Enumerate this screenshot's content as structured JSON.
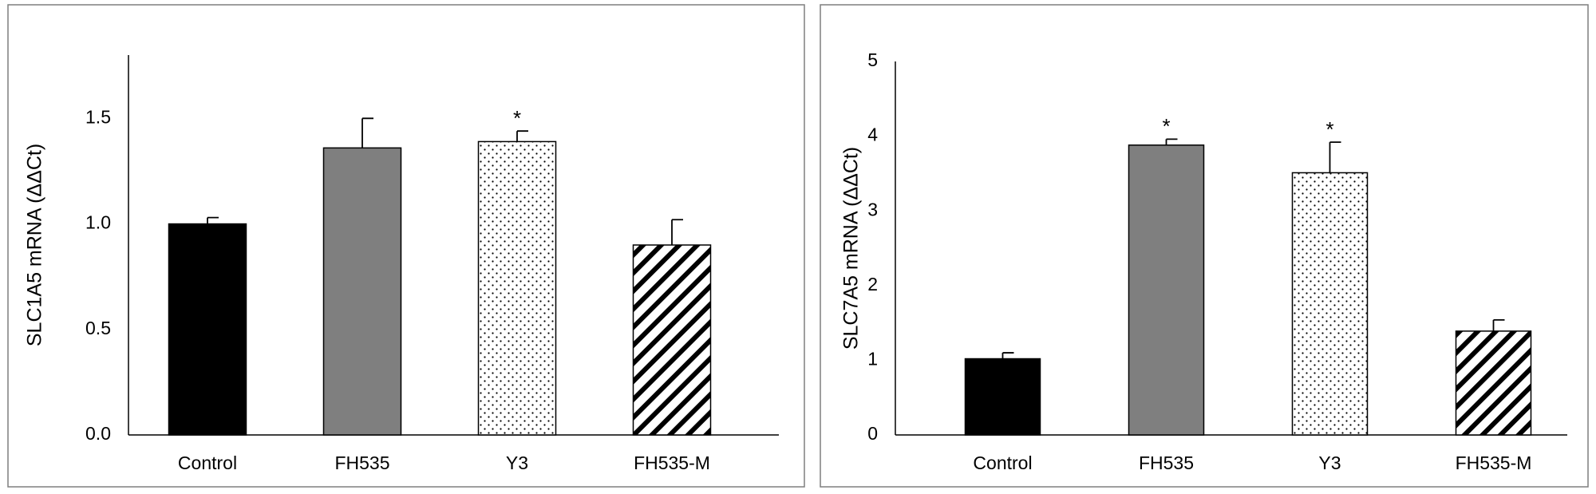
{
  "chart_data": [
    {
      "type": "bar",
      "ylabel": "SLC1A5 mRNA (ΔΔCt)",
      "categories": [
        "Control",
        "FH535",
        "Y3",
        "FH535-M"
      ],
      "values": [
        1.0,
        1.36,
        1.39,
        0.9
      ],
      "errors": [
        0.03,
        0.14,
        0.05,
        0.12
      ],
      "colors": [
        "#000000",
        "#7f7f7f",
        "#ffffff",
        "#ffffff"
      ],
      "patterns": [
        "solid",
        "solid",
        "dots",
        "stripes"
      ],
      "annotations": [
        {
          "category": "Y3",
          "text": "*"
        }
      ],
      "ylim": [
        0,
        1.8
      ],
      "yticks": [
        {
          "value": 0,
          "label": "0.0"
        },
        0.5,
        {
          "value": 1,
          "label": "1.0"
        },
        1.5
      ],
      "grid": false
    },
    {
      "type": "bar",
      "ylabel": "SLC7A5 mRNA (ΔΔCt)",
      "categories": [
        "Control",
        "FH535",
        "Y3",
        "FH535-M"
      ],
      "values": [
        1.02,
        3.88,
        3.51,
        1.39
      ],
      "errors": [
        0.08,
        0.08,
        0.41,
        0.15
      ],
      "colors": [
        "#000000",
        "#7f7f7f",
        "#ffffff",
        "#ffffff"
      ],
      "patterns": [
        "solid",
        "solid",
        "dots",
        "stripes"
      ],
      "annotations": [
        {
          "category": "FH535",
          "text": "*"
        },
        {
          "category": "Y3",
          "text": "*"
        }
      ],
      "ylim": [
        0,
        5
      ],
      "yticks": [
        0,
        1,
        2,
        3,
        4,
        5
      ],
      "grid": false
    }
  ]
}
